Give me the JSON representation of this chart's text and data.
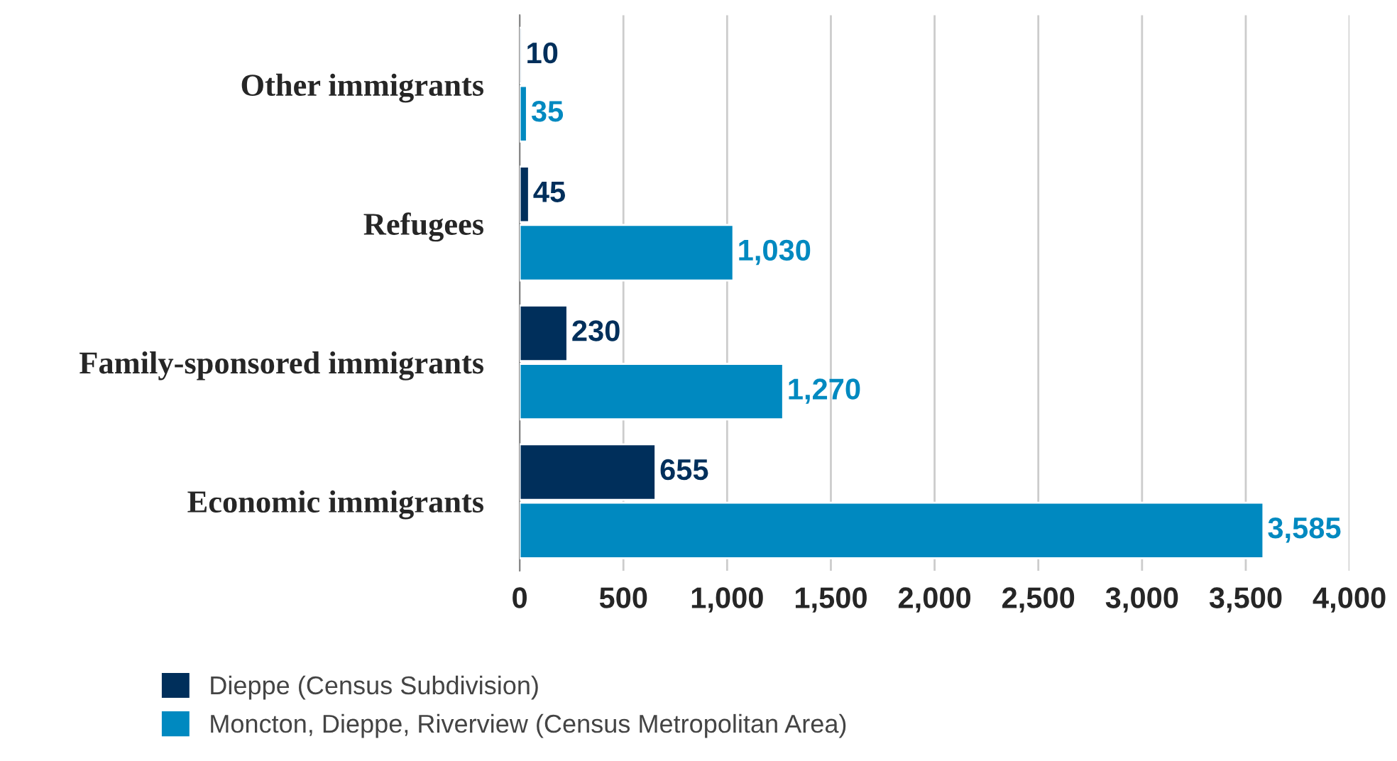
{
  "chart_data": {
    "type": "bar",
    "orientation": "horizontal",
    "categories": [
      "Other immigrants",
      "Refugees",
      "Family-sponsored immigrants",
      "Economic immigrants"
    ],
    "series": [
      {
        "name": "Dieppe (Census Subdivision)",
        "color": "#002f5b",
        "values": [
          10,
          45,
          230,
          655
        ],
        "value_labels": [
          "10",
          "45",
          "230",
          "655"
        ]
      },
      {
        "name": "Moncton, Dieppe, Riverview (Census Metropolitan Area)",
        "color": "#0089c0",
        "values": [
          35,
          1030,
          1270,
          3585
        ],
        "value_labels": [
          "35",
          "1,030",
          "1,270",
          "3,585"
        ]
      }
    ],
    "xlim": [
      0,
      4000
    ],
    "xticks": [
      0,
      500,
      {
        "value": 1000,
        "label": "1,000"
      },
      {
        "value": 1500,
        "label": "1,500"
      },
      {
        "value": 2000,
        "label": "2,000"
      },
      {
        "value": 2500,
        "label": "2,500"
      },
      {
        "value": 3000,
        "label": "3,000"
      },
      {
        "value": 3500,
        "label": "3,500"
      },
      {
        "value": 4000,
        "label": "4,000"
      }
    ],
    "grid": "x",
    "legend": "bottom"
  }
}
